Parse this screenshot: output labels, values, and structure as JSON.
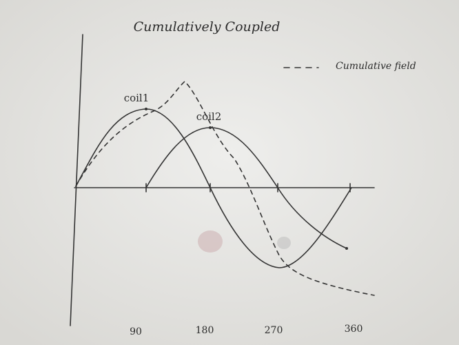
{
  "title": "Cumulatively Coupled",
  "legend": {
    "label": "Cumulative field"
  },
  "curves": [
    {
      "label": "coil1"
    },
    {
      "label": "coil2"
    }
  ],
  "axis": {
    "ticks": [
      "90",
      "180",
      "270",
      "360"
    ]
  }
}
